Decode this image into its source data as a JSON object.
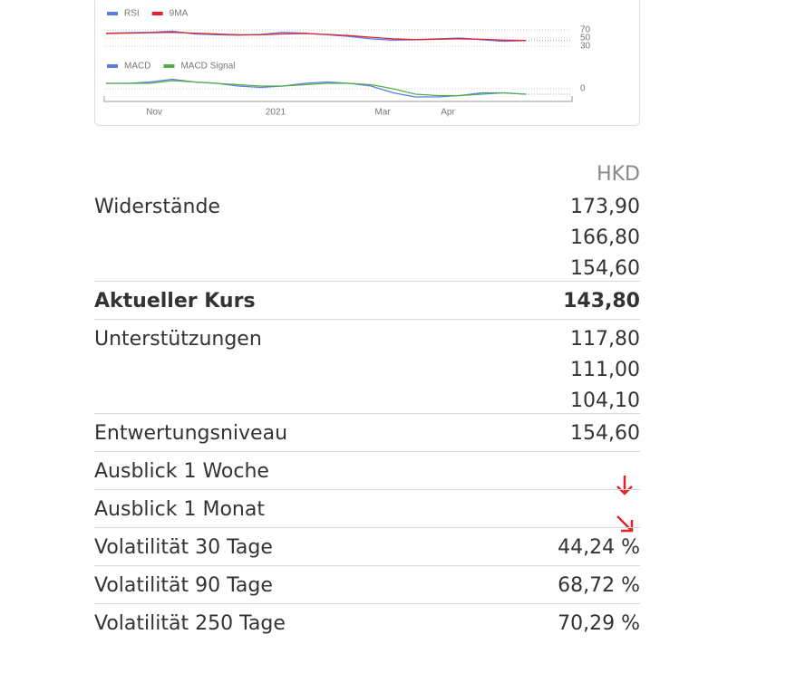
{
  "chart": {
    "x_labels": [
      "Nov",
      "2021",
      "Mar",
      "Apr"
    ],
    "panels": [
      {
        "ylim": [
          20,
          80
        ],
        "yticks": [
          70,
          50,
          30
        ],
        "series": [
          {
            "name": "RSI",
            "color": "#5b7be8",
            "values": [
              62,
              63,
              64,
              67,
              60,
              58,
              57,
              59,
              64,
              62,
              58,
              54,
              48,
              45,
              46,
              48,
              50,
              46,
              42,
              44
            ]
          },
          {
            "name": "9MA",
            "color": "#e8202a",
            "values": [
              61,
              62,
              63,
              64,
              62,
              60,
              58,
              58,
              60,
              61,
              59,
              56,
              52,
              48,
              46,
              47,
              48,
              47,
              45,
              44
            ]
          }
        ]
      },
      {
        "ylim": [
          -10,
          10
        ],
        "yticks": [
          0
        ],
        "series": [
          {
            "name": "MACD",
            "color": "#5b7be8",
            "values": [
              4,
              4,
              5,
              7,
              5,
              4,
              2,
              1,
              2,
              4,
              5,
              4,
              2,
              -3,
              -6,
              -6,
              -5,
              -3,
              -3,
              -4
            ]
          },
          {
            "name": "MACD Signal",
            "color": "#52b043",
            "values": [
              4,
              4,
              4,
              6,
              5,
              4,
              3,
              2,
              2,
              3,
              4,
              4,
              3,
              0,
              -4,
              -5,
              -5,
              -4,
              -3,
              -4
            ]
          }
        ]
      }
    ]
  },
  "table": {
    "currency": "HKD",
    "rows": [
      {
        "label": "Widerstände",
        "values": [
          "173,90",
          "166,80",
          "154,60"
        ]
      },
      {
        "label": "Aktueller Kurs",
        "values": [
          "143,80"
        ]
      },
      {
        "label": "Unterstützungen",
        "values": [
          "117,80",
          "111,00",
          "104,10"
        ]
      },
      {
        "label": "Entwertungsniveau",
        "values": [
          "154,60"
        ]
      },
      {
        "label": "Ausblick 1 Woche"
      },
      {
        "label": "Ausblick 1 Monat"
      },
      {
        "label": "Volatilität 30 Tage",
        "values": [
          "44,24 %"
        ]
      },
      {
        "label": "Volatilität 90 Tage",
        "values": [
          "68,72 %"
        ]
      },
      {
        "label": "Volatilität 250 Tage",
        "values": [
          "70,29 %"
        ]
      }
    ]
  }
}
